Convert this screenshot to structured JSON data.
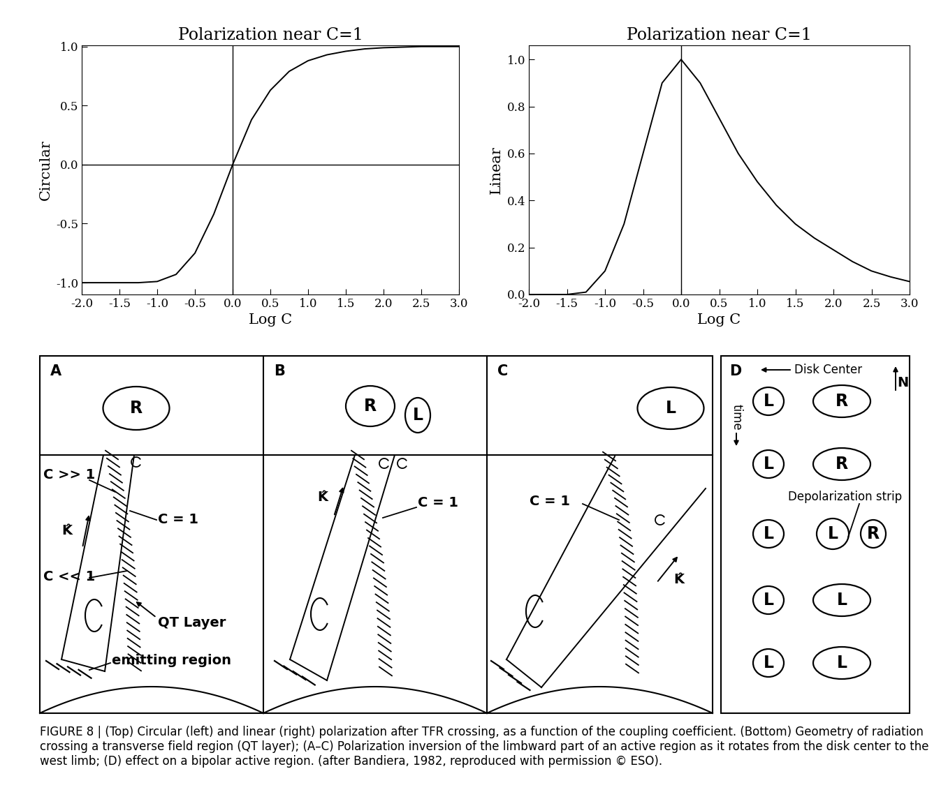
{
  "chart_data": [
    {
      "type": "line",
      "title": "Polarization near C=1",
      "x_label": "Log C",
      "y_label": "Circular",
      "color": "#000000",
      "x": [
        -2.0,
        -1.75,
        -1.5,
        -1.25,
        -1.0,
        -0.75,
        -0.5,
        -0.25,
        0.0,
        0.25,
        0.5,
        0.75,
        1.0,
        1.25,
        1.5,
        1.75,
        2.0,
        2.25,
        2.5,
        2.75,
        3.0
      ],
      "values": [
        -1.0,
        -1.0,
        -1.0,
        -1.0,
        -0.99,
        -0.93,
        -0.75,
        -0.42,
        0.0,
        0.38,
        0.63,
        0.79,
        0.88,
        0.93,
        0.96,
        0.98,
        0.99,
        0.995,
        1.0,
        1.0,
        1.0
      ],
      "xlim": [
        -2.0,
        3.0
      ],
      "xticks": [
        -2.0,
        -1.5,
        -1.0,
        -0.5,
        0.0,
        0.5,
        1.0,
        1.5,
        2.0,
        2.5,
        3.0
      ],
      "ylim": [
        -1.1,
        1.01
      ],
      "yticks": [
        -1.0,
        -0.5,
        0.0,
        0.5,
        1.0
      ],
      "reference_lines": {
        "x": [
          0.0
        ],
        "y": [
          0.0
        ]
      }
    },
    {
      "type": "line",
      "title": "Polarization near C=1",
      "x_label": "Log C",
      "y_label": "Linear",
      "color": "#000000",
      "x": [
        -2.0,
        -1.75,
        -1.5,
        -1.25,
        -1.0,
        -0.75,
        -0.5,
        -0.25,
        0.0,
        0.25,
        0.5,
        0.75,
        1.0,
        1.25,
        1.5,
        1.75,
        2.0,
        2.25,
        2.5,
        2.75,
        3.0
      ],
      "values": [
        0.0,
        0.0,
        0.0,
        0.01,
        0.1,
        0.3,
        0.6,
        0.9,
        1.0,
        0.9,
        0.75,
        0.6,
        0.48,
        0.38,
        0.3,
        0.24,
        0.19,
        0.14,
        0.1,
        0.075,
        0.055
      ],
      "xlim": [
        -2.0,
        3.0
      ],
      "xticks": [
        -2.0,
        -1.5,
        -1.0,
        -0.5,
        0.0,
        0.5,
        1.0,
        1.5,
        2.0,
        2.5,
        3.0
      ],
      "ylim": [
        0.0,
        1.06
      ],
      "yticks": [
        0.0,
        0.2,
        0.4,
        0.6,
        0.8,
        1.0
      ],
      "reference_lines": {
        "x": [
          0.0
        ]
      }
    }
  ],
  "diagram": {
    "panels": [
      {
        "label": "A",
        "regions": [
          "R"
        ],
        "beam_label": "K̂",
        "labels": {
          "strong": "C >> 1",
          "coupling": "C = 1",
          "weak": "C << 1",
          "layer": "QT Layer",
          "source": "emitting region"
        }
      },
      {
        "label": "B",
        "regions": [
          "R",
          "L"
        ],
        "beam_label": "K̂",
        "labels": {
          "coupling": "C = 1"
        }
      },
      {
        "label": "C",
        "regions": [
          "L"
        ],
        "beam_label": "K̂",
        "labels": {
          "coupling": "C = 1"
        }
      },
      {
        "label": "D",
        "disk_center": "Disk Center",
        "north": "N",
        "time": "time",
        "strip": "Depolarization strip",
        "rows": [
          [
            "L",
            "R"
          ],
          [
            "L",
            "R"
          ],
          [
            "L",
            "L",
            "R"
          ],
          [
            "L",
            "L"
          ],
          [
            "L",
            "L"
          ]
        ]
      }
    ]
  },
  "caption": "FIGURE 8 | (Top) Circular (left) and linear (right) polarization after TFR crossing, as a function of the coupling coefficient. (Bottom) Geometry of radiation crossing a transverse field region (QT layer); (A–C) Polarization inversion of the limbward part of an active region as it rotates from the disk center to the west limb; (D) effect on a bipolar active region. (after Bandiera, 1982, reproduced with permission © ESO)."
}
